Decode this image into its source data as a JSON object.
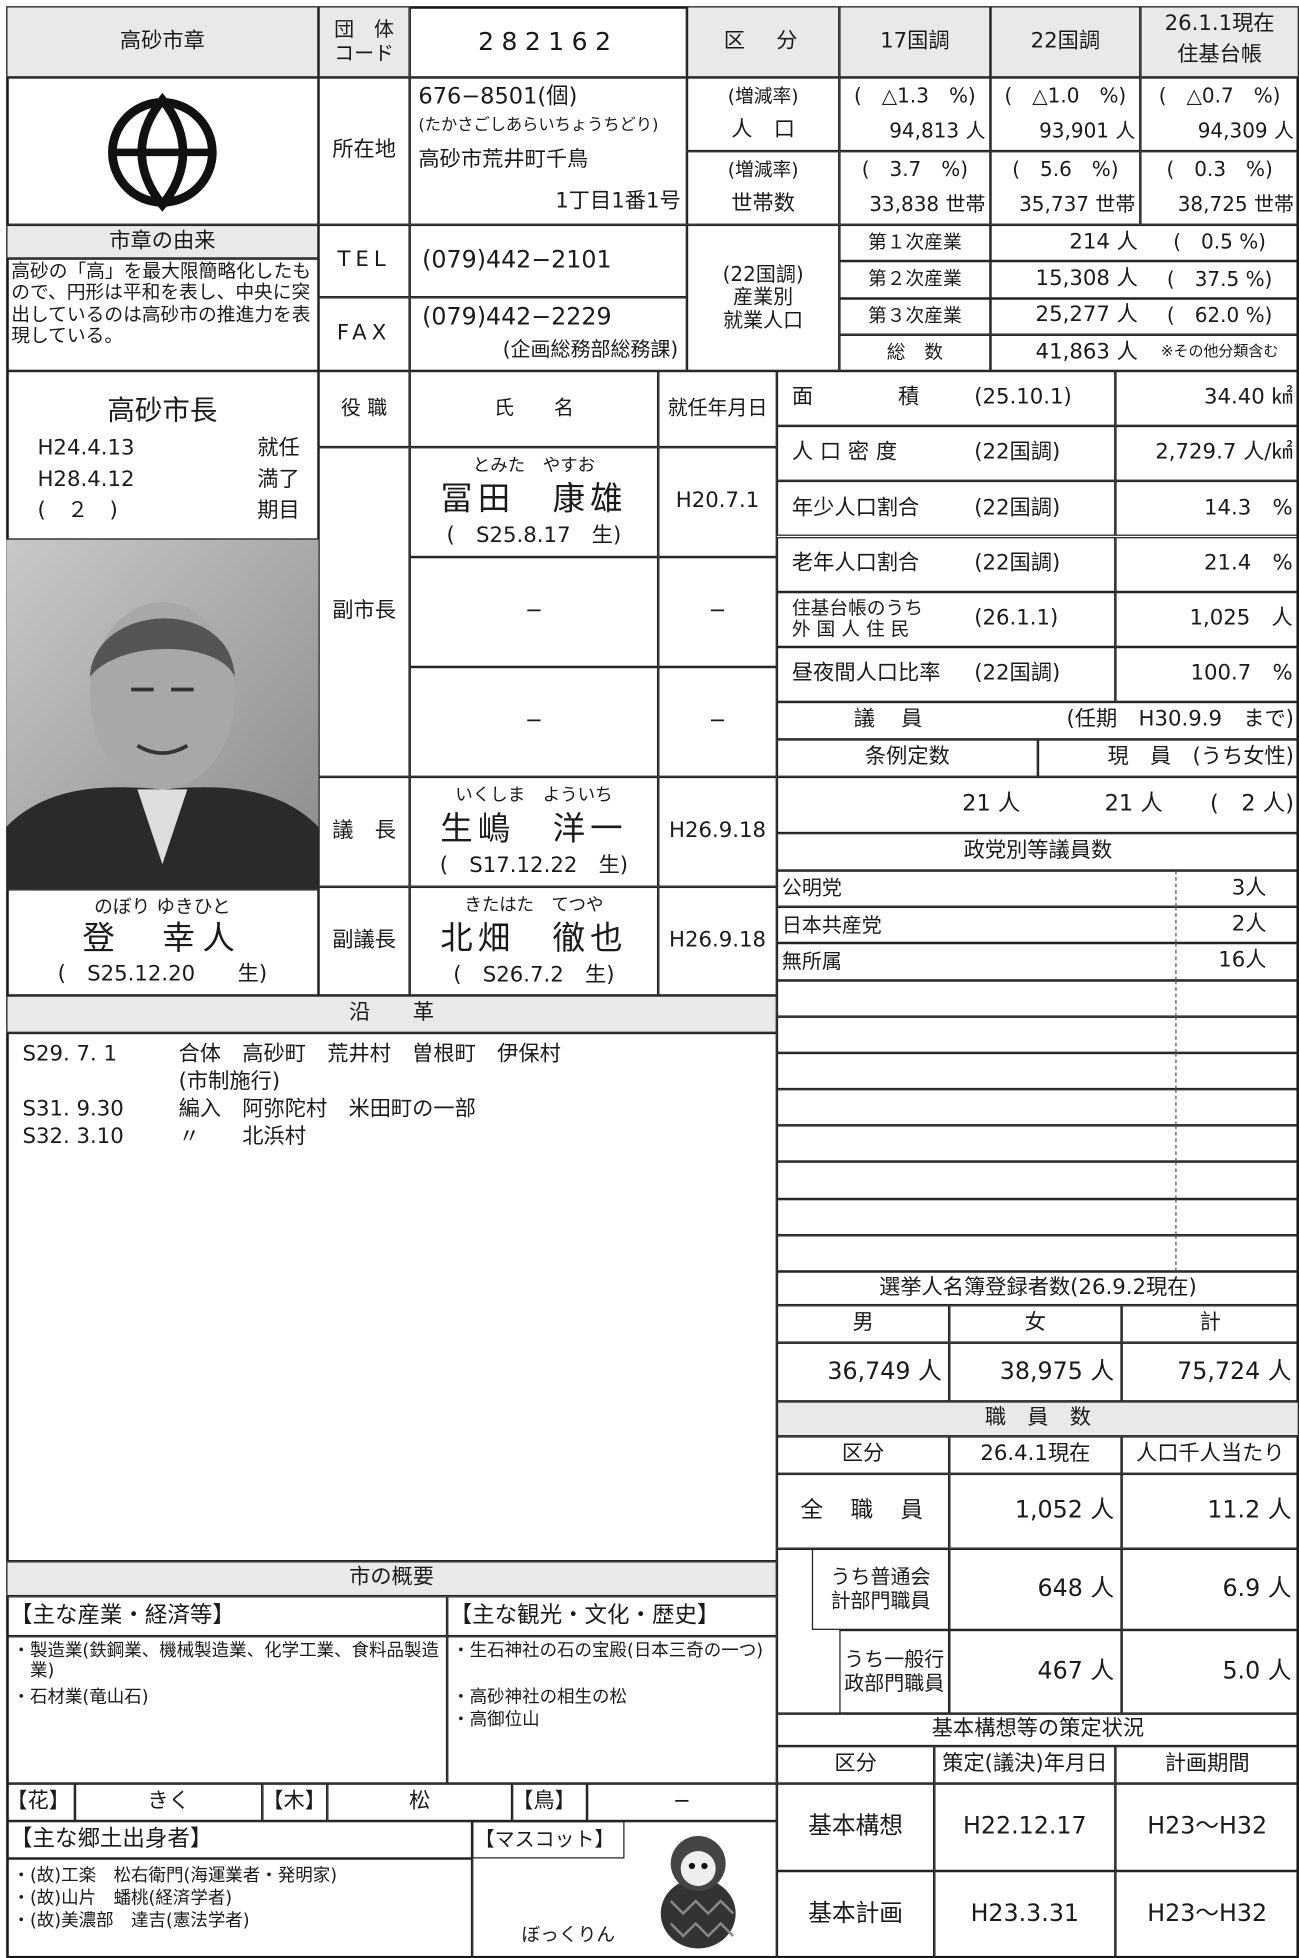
{
  "emblem": {
    "title": "高砂市章",
    "origin_title": "市章の由来",
    "origin": "高砂の「高」を最大限簡略化したもので、円形は平和を表し、中央に突出しているのは高砂市の推進力を表現している。"
  },
  "code": {
    "label": "団　体\nコード",
    "value": "282162"
  },
  "address": {
    "label": "所在地",
    "postal": "676−8501(個)",
    "kana": "(たかさごしあらいちょうちどり)",
    "line1": "高砂市荒井町千鳥",
    "line2": "1丁目1番1号"
  },
  "tel": {
    "label": "TEL",
    "value": "(079)442−2101"
  },
  "fax": {
    "label": "FAX",
    "value": "(079)442−2229",
    "note": "(企画総務部総務課)"
  },
  "population": {
    "header": {
      "label": "区　分",
      "c17": "17国調",
      "c22": "22国調",
      "c26": "26.1.1現在",
      "c26b": "住基台帳"
    },
    "rows": [
      {
        "rate_label": "(増減率)",
        "label": "人　口",
        "rates": [
          "(　△1.3　%)",
          "(　△1.0　%)",
          "(　△0.7　%)"
        ],
        "values": [
          "94,813 人",
          "93,901 人",
          "94,309 人"
        ]
      },
      {
        "rate_label": "(増減率)",
        "label": "世帯数",
        "rates": [
          "(　3.7　%)",
          "(　5.6　%)",
          "(　0.3　%)"
        ],
        "values": [
          "33,838 世帯",
          "35,737 世帯",
          "38,725 世帯"
        ]
      }
    ]
  },
  "industry": {
    "label": "(22国調)\n産業別\n就業人口",
    "rows": [
      {
        "name": "第１次産業",
        "count": "214 人",
        "pct": "(　0.5 %)"
      },
      {
        "name": "第２次産業",
        "count": "15,308 人",
        "pct": "(　37.5 %)"
      },
      {
        "name": "第３次産業",
        "count": "25,277 人",
        "pct": "(　62.0 %)"
      },
      {
        "name": "総　数",
        "count": "41,863 人",
        "pct": "※その他分類含む"
      }
    ]
  },
  "mayor": {
    "title": "高砂市長",
    "terms": [
      {
        "date": "H24.4.13",
        "label": "就任"
      },
      {
        "date": "H28.4.12",
        "label": "満了"
      },
      {
        "date": "(　２　)",
        "label": "期目"
      }
    ],
    "kana": "のぼり ゆきひと",
    "name": "登　幸人",
    "birth": "(　S25.12.20　　生)"
  },
  "officials": {
    "headers": [
      "役 職",
      "氏　　名",
      "就任年月日"
    ],
    "vice_mayor_label": "副市長",
    "vice_mayors": [
      {
        "kana": "とみた　やすお",
        "name": "冨田　康雄",
        "birth": "(　S25.8.17　生)",
        "date": "H20.7.1"
      },
      {
        "name": "−",
        "date": "−"
      },
      {
        "name": "−",
        "date": "−"
      }
    ],
    "chair": {
      "label": "議　長",
      "kana": "いくしま　よういち",
      "name": "生嶋　洋一",
      "birth": "(　S17.12.22　生)",
      "date": "H26.9.18"
    },
    "vice_chair": {
      "label": "副議長",
      "kana": "きたはた　てつや",
      "name": "北畑　徹也",
      "birth": "(　S26.7.2　生)",
      "date": "H26.9.18"
    }
  },
  "stats": [
    {
      "label": "面　　　　積",
      "ref": "(25.10.1)",
      "value": "34.40 ㎢"
    },
    {
      "label": "人 口 密 度",
      "ref": "(22国調)",
      "value": "2,729.7 人/㎢"
    },
    {
      "label": "年少人口割合",
      "ref": "(22国調)",
      "value": "14.3　%"
    },
    {
      "label": "老年人口割合",
      "ref": "(22国調)",
      "value": "21.4　%"
    },
    {
      "label": "住基台帳のうち\n外 国 人 住 民",
      "ref": "(26.1.1)",
      "value": "1,025　人"
    },
    {
      "label": "昼夜間人口比率",
      "ref": "(22国調)",
      "value": "100.7　%"
    }
  ],
  "council": {
    "title": "議　員",
    "term": "(任期　H30.9.9　まで)",
    "fixed_label": "条例定数",
    "current_label": "現　員　(うち女性)",
    "fixed": "21 人",
    "current": "21 人",
    "women": "(　2 人)",
    "party_title": "政党別等議員数",
    "parties": [
      {
        "name": "公明党",
        "count": "3人"
      },
      {
        "name": "日本共産党",
        "count": "2人"
      },
      {
        "name": "無所属",
        "count": "16人"
      }
    ]
  },
  "history": {
    "title": "沿　　革",
    "entries": [
      {
        "date": "S29. 7. 1",
        "text": "合体　高砂町　荒井村　曽根町　伊保村",
        "note": "(市制施行)"
      },
      {
        "date": "S31. 9.30",
        "text": "編入　阿弥陀村　米田町の一部"
      },
      {
        "date": "S32. 3.10",
        "text": "〃　　北浜村"
      }
    ]
  },
  "election": {
    "title": "選挙人名簿登録者数(26.9.2現在)",
    "headers": [
      "男",
      "女",
      "計"
    ],
    "values": [
      "36,749 人",
      "38,975 人",
      "75,724 人"
    ]
  },
  "staff": {
    "title": "職　員　数",
    "headers": [
      "区分",
      "26.4.1現在",
      "人口千人当たり"
    ],
    "rows": [
      [
        "全　職　員",
        "1,052 人",
        "11.2 人"
      ],
      [
        "うち普通会\n計部門職員",
        "648 人",
        "6.9 人"
      ],
      [
        "うち一般行\n政部門職員",
        "467 人",
        "5.0 人"
      ]
    ]
  },
  "plans": {
    "title": "基本構想等の策定状況",
    "headers": [
      "区分",
      "策定(議決)年月日",
      "計画期間"
    ],
    "rows": [
      [
        "基本構想",
        "H22.12.17",
        "H23〜H32"
      ],
      [
        "基本計画",
        "H23.3.31",
        "H23〜H32"
      ]
    ]
  },
  "overview": {
    "title": "市の概要",
    "industry_title": "【主な産業・経済等】",
    "industry": [
      "・製造業(鉄鋼業、機械製造業、化学工業、食料品製造業)",
      "・石材業(竜山石)"
    ],
    "tourism_title": "【主な観光・文化・歴史】",
    "tourism": [
      "・生石神社の石の宝殿(日本三奇の一つ)",
      "・高砂神社の相生の松",
      "・高御位山"
    ],
    "flower_label": "【花】",
    "flower": "きく",
    "tree_label": "【木】",
    "tree": "松",
    "bird_label": "【鳥】",
    "bird": "−",
    "people_title": "【主な郷土出身者】",
    "people": [
      "・(故)工楽　松右衛門(海運業者・発明家)",
      "・(故)山片　蟠桃(経済学者)",
      "・(故)美濃部　達吉(憲法学者)"
    ],
    "mascot_title": "【マスコット】",
    "mascot": "ぼっくりん"
  }
}
